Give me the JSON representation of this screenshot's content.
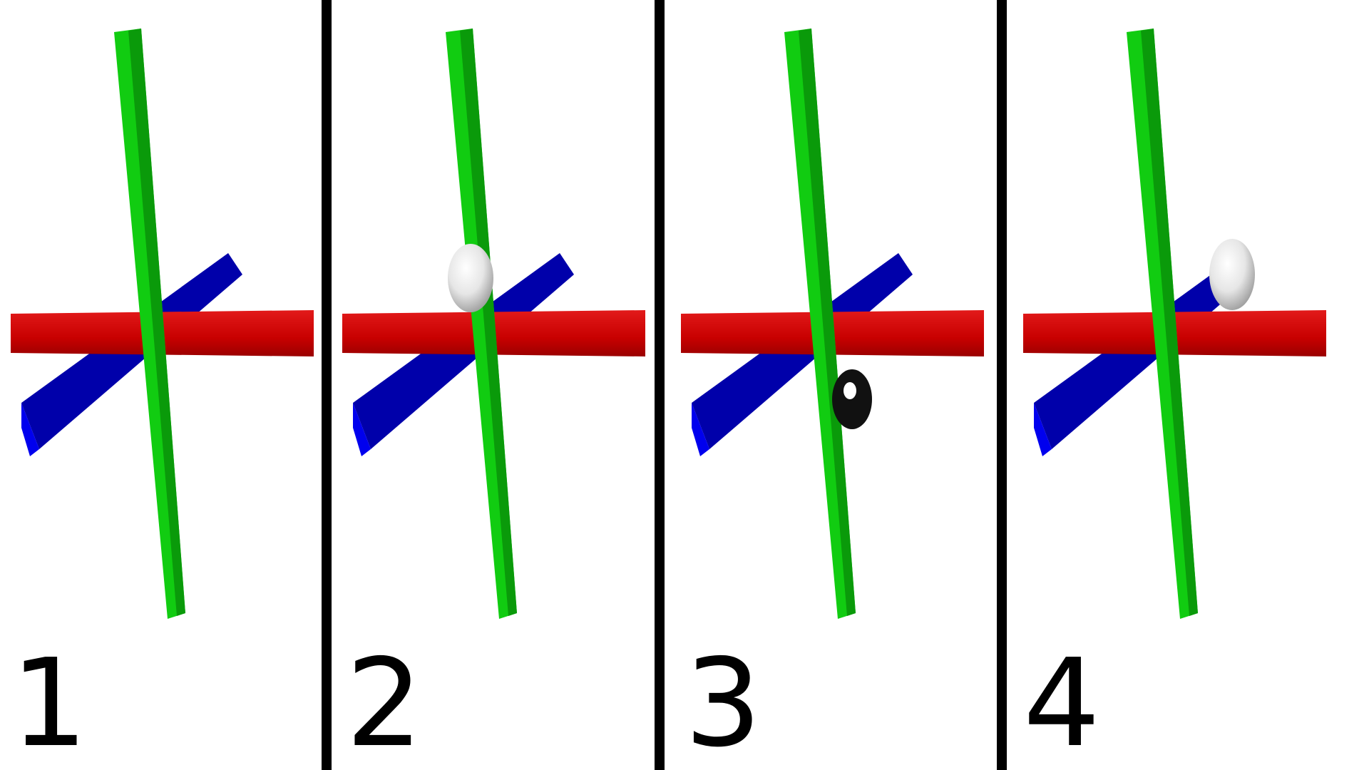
{
  "colors": {
    "background": "#ffffff",
    "divider": "#000000",
    "x_axis": "#cc0000",
    "y_axis": "#11cc11",
    "z_axis": "#0000aa",
    "marker_white": "#e0e0e0",
    "marker_black": "#111111"
  },
  "panels": [
    {
      "label": "1",
      "marker": "none"
    },
    {
      "label": "2",
      "marker": "white-sphere-upper-left"
    },
    {
      "label": "3",
      "marker": "black-sphere-lower-right"
    },
    {
      "label": "4",
      "marker": "white-sphere-upper-right"
    }
  ]
}
